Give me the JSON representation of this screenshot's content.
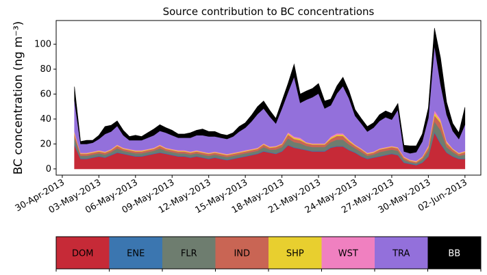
{
  "chart_data": {
    "type": "area",
    "stacked": true,
    "title": "Source contribution to BC concentrations",
    "ylabel": "BC concentration (ng m⁻³)",
    "xlabel": "",
    "ylim": [
      -5,
      119
    ],
    "xlim_days_from_2013_04_30": [
      -0.5,
      34.3
    ],
    "y_ticks": [
      0,
      20,
      40,
      60,
      80,
      100
    ],
    "x_ticks": [
      {
        "day": 0,
        "label": "30-Apr-2013"
      },
      {
        "day": 3,
        "label": "03-May-2013"
      },
      {
        "day": 6,
        "label": "06-May-2013"
      },
      {
        "day": 9,
        "label": "09-May-2013"
      },
      {
        "day": 12,
        "label": "12-May-2013"
      },
      {
        "day": 15,
        "label": "15-May-2013"
      },
      {
        "day": 18,
        "label": "18-May-2013"
      },
      {
        "day": 21,
        "label": "21-May-2013"
      },
      {
        "day": 24,
        "label": "24-May-2013"
      },
      {
        "day": 27,
        "label": "27-May-2013"
      },
      {
        "day": 30,
        "label": "30-May-2013"
      },
      {
        "day": 33,
        "label": "02-Jun-2013"
      }
    ],
    "x_days": [
      1,
      1.5,
      2,
      2.5,
      3,
      3.5,
      4,
      4.5,
      5,
      5.5,
      6,
      6.5,
      7,
      7.5,
      8,
      8.5,
      9,
      9.5,
      10,
      10.5,
      11,
      11.5,
      12,
      12.5,
      13,
      13.5,
      14,
      14.5,
      15,
      15.5,
      16,
      16.5,
      17,
      17.5,
      18,
      18.5,
      19,
      19.5,
      20,
      20.5,
      21,
      21.5,
      22,
      22.5,
      23,
      23.5,
      24,
      24.5,
      25,
      25.5,
      26,
      26.5,
      27,
      27.5,
      28,
      28.5,
      29,
      29.5,
      30,
      30.5,
      31,
      31.5,
      32,
      32.5,
      33
    ],
    "series": [
      {
        "name": "DOM",
        "color": "#c62a37",
        "values": [
          19,
          8,
          8,
          9,
          10,
          9,
          11,
          13,
          12,
          11,
          10,
          10,
          11,
          12,
          13,
          12,
          11,
          10,
          10,
          9,
          10,
          9,
          8,
          9,
          8,
          7,
          8,
          9,
          10,
          11,
          12,
          14,
          13,
          12,
          14,
          19,
          17,
          16,
          15,
          14,
          14,
          14,
          17,
          18,
          18,
          15,
          13,
          10,
          8,
          9,
          10,
          11,
          12,
          11,
          5,
          4,
          3,
          5,
          10,
          29,
          20,
          13,
          10,
          8,
          8
        ]
      },
      {
        "name": "ENE",
        "color": "#3b76b0",
        "values": [
          1,
          0.5,
          0.5,
          0.5,
          0.5,
          0.5,
          0.5,
          0.5,
          0.5,
          0.5,
          0.5,
          0.5,
          0.5,
          0.5,
          0.5,
          0.5,
          0.5,
          0.5,
          0.5,
          0.5,
          0.5,
          0.5,
          0.5,
          0.5,
          0.5,
          0.5,
          0.5,
          0.5,
          0.5,
          0.5,
          0.5,
          0.5,
          0.5,
          0.5,
          0.5,
          0.5,
          0.5,
          0.5,
          0.5,
          0.5,
          0.5,
          0.5,
          0.5,
          0.5,
          0.5,
          0.5,
          0.5,
          0.5,
          0.5,
          0.5,
          0.5,
          0.5,
          0.5,
          0.5,
          0.5,
          0.5,
          0.5,
          0.5,
          0.5,
          1,
          1,
          0.5,
          0.5,
          0.5,
          0.5
        ]
      },
      {
        "name": "FLR",
        "color": "#6e7d6f",
        "values": [
          5,
          2,
          2,
          2,
          2,
          2,
          2,
          3,
          2,
          2,
          2,
          2,
          2,
          2,
          3,
          2,
          2,
          2,
          2,
          2,
          2,
          2,
          2,
          2,
          2,
          2,
          2,
          2,
          2,
          2,
          2,
          3,
          2,
          3,
          3,
          5,
          4,
          4,
          3,
          3,
          3,
          3,
          4,
          5,
          5,
          4,
          3,
          3,
          2,
          2,
          3,
          3,
          3,
          3,
          2,
          1,
          1,
          2,
          4,
          8,
          10,
          4,
          3,
          2,
          3
        ]
      },
      {
        "name": "IND",
        "color": "#c96554",
        "values": [
          3,
          1.5,
          1.5,
          1.5,
          1.5,
          1.5,
          1.5,
          2,
          1.5,
          1.5,
          1.5,
          1.5,
          1.5,
          1.5,
          2,
          1.5,
          1.5,
          1.5,
          1.5,
          1.5,
          1.5,
          1.5,
          1.5,
          1.5,
          1.5,
          1.5,
          1.5,
          1.5,
          1.5,
          1.5,
          1.5,
          2,
          1.5,
          2,
          2,
          3,
          2.5,
          2.5,
          2,
          2,
          2,
          2,
          2.5,
          3,
          3,
          2.5,
          2,
          2,
          1.5,
          1.5,
          2,
          2,
          2,
          2,
          1.5,
          1,
          1,
          1.5,
          2.5,
          5,
          6,
          3,
          2,
          1.5,
          2
        ]
      },
      {
        "name": "SHP",
        "color": "#e8cf2f",
        "values": [
          1,
          0.5,
          0.5,
          0.5,
          0.5,
          0.5,
          0.5,
          0.5,
          0.5,
          0.5,
          0.5,
          0.5,
          0.5,
          0.5,
          0.5,
          0.5,
          0.5,
          0.5,
          0.5,
          0.5,
          0.5,
          0.5,
          0.5,
          0.5,
          0.5,
          0.5,
          0.5,
          0.5,
          0.5,
          0.5,
          0.5,
          0.5,
          0.5,
          0.5,
          0.5,
          1,
          1,
          1,
          0.5,
          0.5,
          0.5,
          0.5,
          1,
          1,
          1,
          1,
          0.5,
          0.5,
          0.5,
          0.5,
          0.5,
          0.5,
          0.5,
          0.5,
          0.5,
          0.5,
          0.5,
          0.5,
          1,
          2,
          1.5,
          1,
          0.5,
          0.5,
          0.5
        ]
      },
      {
        "name": "WST",
        "color": "#f080c0",
        "values": [
          1,
          0.5,
          0.5,
          0.5,
          0.5,
          0.5,
          0.5,
          0.5,
          0.5,
          0.5,
          0.5,
          0.5,
          0.5,
          0.5,
          0.5,
          0.5,
          0.5,
          0.5,
          0.5,
          0.5,
          0.5,
          0.5,
          0.5,
          0.5,
          0.5,
          0.5,
          0.5,
          0.5,
          0.5,
          0.5,
          0.5,
          0.5,
          0.5,
          0.5,
          0.5,
          1,
          1,
          1,
          0.5,
          0.5,
          0.5,
          0.5,
          1,
          1,
          1,
          0.5,
          0.5,
          0.5,
          0.5,
          0.5,
          0.5,
          0.5,
          0.5,
          0.5,
          0.5,
          0.5,
          0.5,
          0.5,
          1,
          2,
          1.5,
          1,
          0.5,
          0.5,
          0.5
        ]
      },
      {
        "name": "TRA",
        "color": "#9370db",
        "values": [
          25,
          7,
          7,
          7,
          9,
          14,
          14,
          15,
          10,
          7,
          8,
          8,
          9,
          10,
          11,
          12,
          11,
          10,
          10,
          11,
          12,
          13,
          13,
          12,
          12,
          12,
          13,
          16,
          18,
          22,
          27,
          28,
          24,
          18,
          28,
          32,
          48,
          28,
          34,
          37,
          40,
          28,
          25,
          32,
          38,
          33,
          23,
          20,
          17,
          19,
          22,
          24,
          21,
          30,
          4,
          5,
          7,
          12,
          22,
          52,
          28,
          21,
          14,
          11,
          21
        ]
      },
      {
        "name": "BB",
        "color": "#000000",
        "values": [
          11,
          2,
          3,
          2,
          3,
          6,
          5,
          4,
          4,
          3,
          4,
          3,
          4,
          5,
          5,
          4,
          4,
          3,
          3,
          4,
          4,
          5,
          4,
          4,
          3,
          3,
          3,
          4,
          4,
          5,
          6,
          6,
          5,
          4,
          6,
          7,
          10,
          7,
          7,
          7,
          8,
          6,
          5,
          6,
          7,
          6,
          5,
          4,
          4,
          4,
          5,
          5,
          5,
          5,
          5,
          6,
          5,
          6,
          8,
          14,
          21,
          10,
          6,
          5,
          14
        ]
      }
    ],
    "legend": {
      "placement": "below",
      "entries": [
        {
          "label": "DOM",
          "color": "#c62a37",
          "text_color": "#000000"
        },
        {
          "label": "ENE",
          "color": "#3b76b0",
          "text_color": "#000000"
        },
        {
          "label": "FLR",
          "color": "#6e7d6f",
          "text_color": "#000000"
        },
        {
          "label": "IND",
          "color": "#c96554",
          "text_color": "#000000"
        },
        {
          "label": "SHP",
          "color": "#e8cf2f",
          "text_color": "#000000"
        },
        {
          "label": "WST",
          "color": "#f080c0",
          "text_color": "#000000"
        },
        {
          "label": "TRA",
          "color": "#9370db",
          "text_color": "#000000"
        },
        {
          "label": "BB",
          "color": "#000000",
          "text_color": "#ffffff"
        }
      ]
    }
  }
}
